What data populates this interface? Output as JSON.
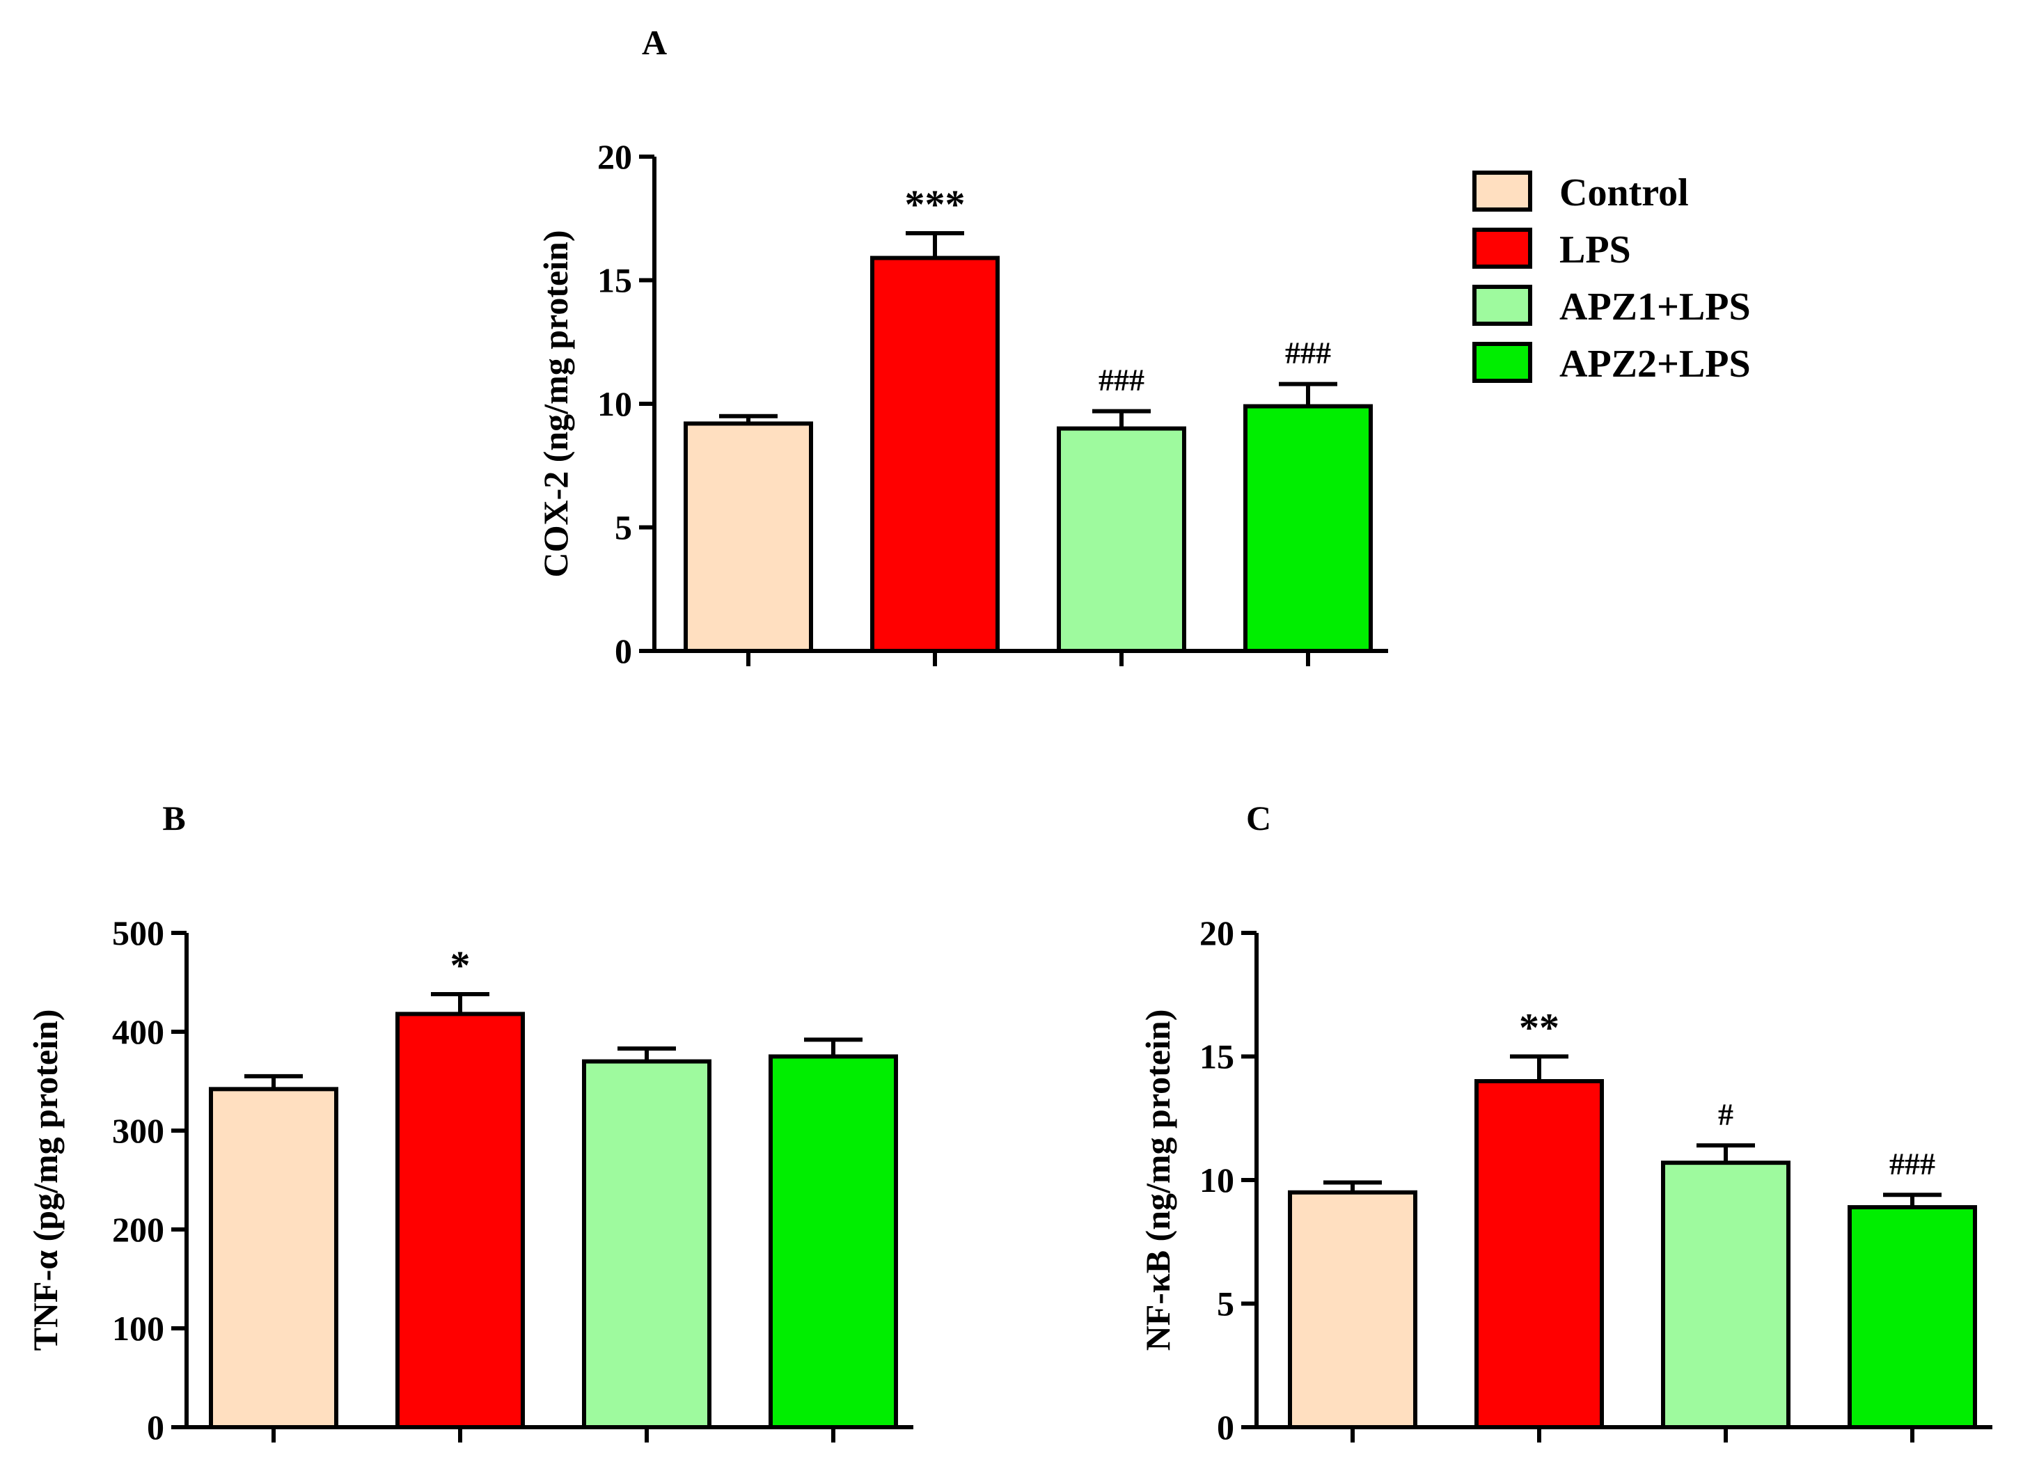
{
  "legend": [
    {
      "label": "Control",
      "color": "#FFDFC0"
    },
    {
      "label": "LPS",
      "color": "#FF0000"
    },
    {
      "label": "APZ1+LPS",
      "color": "#9EFA9E"
    },
    {
      "label": "APZ2+LPS",
      "color": "#00EE00"
    }
  ],
  "chart_data": [
    {
      "panel": "A",
      "type": "bar",
      "categories": [
        "Control",
        "LPS",
        "APZ1+LPS",
        "APZ2+LPS"
      ],
      "values": [
        9.2,
        15.9,
        9.0,
        9.9
      ],
      "errors": [
        0.3,
        1.0,
        0.7,
        0.9
      ],
      "significance": [
        "",
        "***",
        "###",
        "###"
      ],
      "ylabel": "COX-2 (ng/mg protein)",
      "ylim": [
        0,
        20
      ],
      "yticks": [
        0,
        5,
        10,
        15,
        20
      ],
      "title": "",
      "xlabel": ""
    },
    {
      "panel": "B",
      "type": "bar",
      "categories": [
        "Control",
        "LPS",
        "APZ1+LPS",
        "APZ2+LPS"
      ],
      "values": [
        342,
        418,
        370,
        375
      ],
      "errors": [
        13,
        20,
        13,
        17
      ],
      "significance": [
        "",
        "*",
        "",
        ""
      ],
      "ylabel": "TNF-α (pg/mg protein)",
      "ylim": [
        0,
        500
      ],
      "yticks": [
        0,
        100,
        200,
        300,
        400,
        500
      ],
      "title": "",
      "xlabel": ""
    },
    {
      "panel": "C",
      "type": "bar",
      "categories": [
        "Control",
        "LPS",
        "APZ1+LPS",
        "APZ2+LPS"
      ],
      "values": [
        9.5,
        14.0,
        10.7,
        8.9
      ],
      "errors": [
        0.4,
        1.0,
        0.7,
        0.5
      ],
      "significance": [
        "",
        "**",
        "#",
        "###"
      ],
      "ylabel": "NF-κB (ng/mg protein)",
      "ylim": [
        0,
        20
      ],
      "yticks": [
        0,
        5,
        10,
        15,
        20
      ],
      "title": "",
      "xlabel": ""
    }
  ]
}
